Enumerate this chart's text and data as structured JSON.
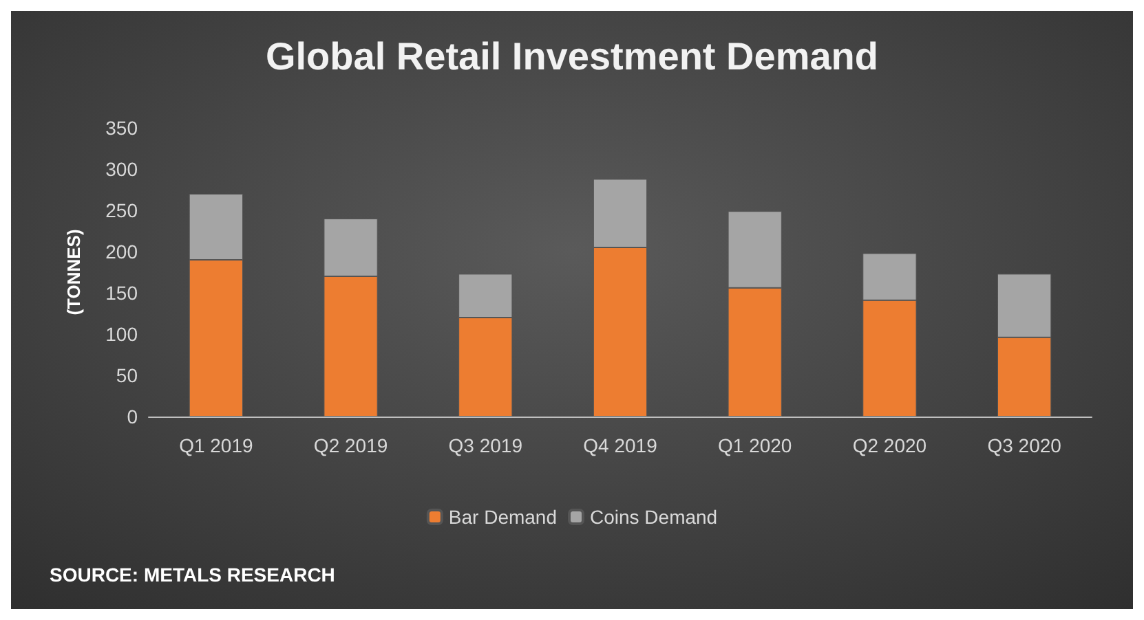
{
  "chart_data": {
    "type": "bar",
    "title": "Global Retail Investment Demand",
    "ylabel": "(TONNES)",
    "categories": [
      "Q1 2019",
      "Q2 2019",
      "Q3 2019",
      "Q4 2019",
      "Q1 2020",
      "Q2 2020",
      "Q3 2020"
    ],
    "series": [
      {
        "name": "Bar Demand",
        "color": "#ed7d31",
        "values": [
          190,
          170,
          120,
          205,
          156,
          141,
          96
        ]
      },
      {
        "name": "Coins Demand",
        "color": "#a5a5a5",
        "values": [
          80,
          70,
          53,
          83,
          93,
          57,
          77
        ]
      }
    ],
    "stacked": true,
    "ylim": [
      0,
      350
    ],
    "yticks": [
      0,
      50,
      100,
      150,
      200,
      250,
      300,
      350
    ],
    "grid": false,
    "legend": "bottom",
    "annotations": [
      "SOURCE: METALS RESEARCH"
    ]
  }
}
